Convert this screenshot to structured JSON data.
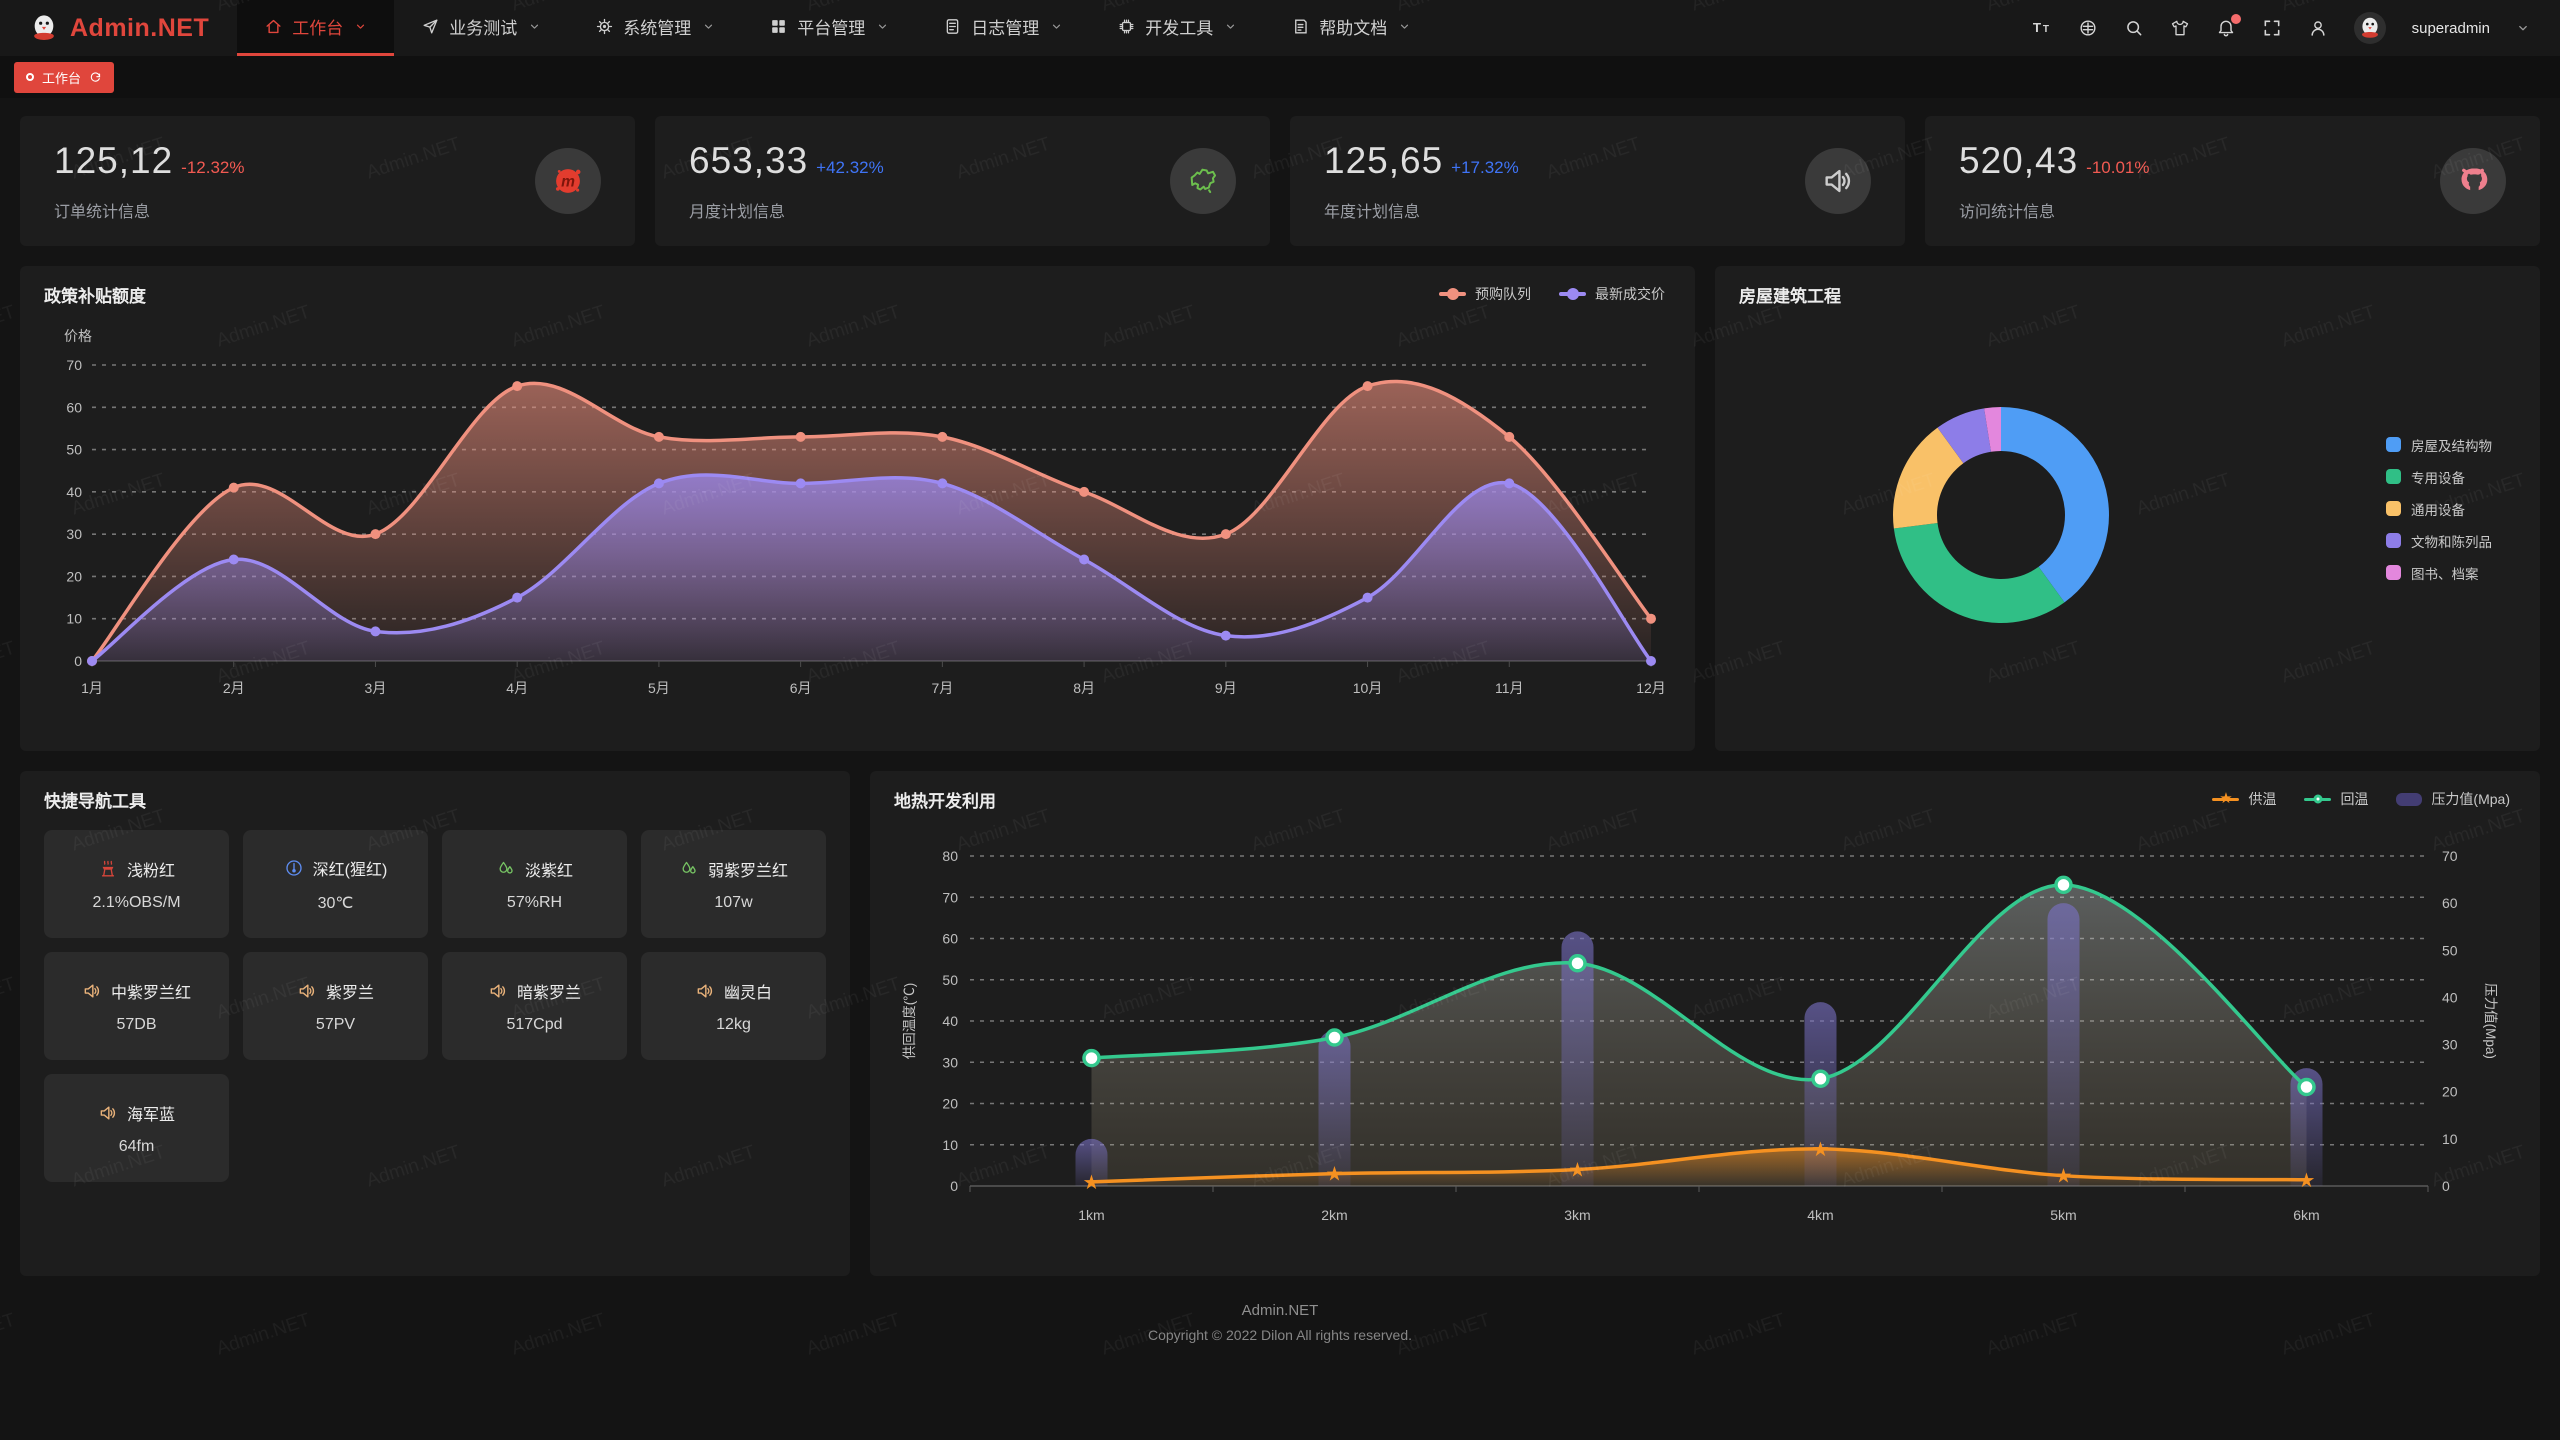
{
  "brand": {
    "logo_text": "Admin.NET",
    "accent": "#e0463c"
  },
  "navbar": {
    "items": [
      {
        "label": "工作台",
        "icon": "home-icon",
        "active": true
      },
      {
        "label": "业务测试",
        "icon": "send-icon"
      },
      {
        "label": "系统管理",
        "icon": "gear-icon"
      },
      {
        "label": "平台管理",
        "icon": "grid-icon"
      },
      {
        "label": "日志管理",
        "icon": "log-icon"
      },
      {
        "label": "开发工具",
        "icon": "chip-icon"
      },
      {
        "label": "帮助文档",
        "icon": "doc-icon"
      }
    ],
    "tools": [
      "font-size-icon",
      "language-icon",
      "search-icon",
      "theme-icon",
      "notification-icon",
      "fullscreen-icon",
      "profile-icon"
    ],
    "user": "superadmin"
  },
  "tabbar": {
    "active_tab": "工作台"
  },
  "stats": [
    {
      "value": "125,12",
      "delta": "-12.32%",
      "trend": "down",
      "label": "订单统计信息",
      "icon": "meetup-icon"
    },
    {
      "value": "653,33",
      "delta": "+42.32%",
      "trend": "up",
      "label": "月度计划信息",
      "icon": "china-map-icon"
    },
    {
      "value": "125,65",
      "delta": "+17.32%",
      "trend": "up",
      "label": "年度计划信息",
      "icon": "speaker-icon"
    },
    {
      "value": "520,43",
      "delta": "-10.01%",
      "trend": "down",
      "label": "访问统计信息",
      "icon": "octocat-icon"
    }
  ],
  "panels": {
    "subsidy_title": "政策补贴额度",
    "building_title": "房屋建筑工程",
    "quick_nav_title": "快捷导航工具",
    "geothermal_title": "地热开发利用"
  },
  "quick_nav": [
    {
      "name": "浅粉红",
      "value": "2.1%OBS/M",
      "icon": "heat-icon",
      "color": "#d6453a"
    },
    {
      "name": "深红(猩红)",
      "value": "30℃",
      "icon": "thermometer-icon",
      "color": "#5e8df2"
    },
    {
      "name": "淡紫红",
      "value": "57%RH",
      "icon": "drops-icon",
      "color": "#76c263"
    },
    {
      "name": "弱紫罗兰红",
      "value": "107w",
      "icon": "drops-icon",
      "color": "#76c263"
    },
    {
      "name": "中紫罗兰红",
      "value": "57DB",
      "icon": "speaker-icon",
      "color": "#e9b27a"
    },
    {
      "name": "紫罗兰",
      "value": "57PV",
      "icon": "speaker-icon",
      "color": "#e9b27a"
    },
    {
      "name": "暗紫罗兰",
      "value": "517Cpd",
      "icon": "speaker-icon",
      "color": "#e9b27a"
    },
    {
      "name": "幽灵白",
      "value": "12kg",
      "icon": "speaker-icon",
      "color": "#e9b27a"
    },
    {
      "name": "海军蓝",
      "value": "64fm",
      "icon": "speaker-icon",
      "color": "#e9b27a"
    }
  ],
  "footer": {
    "line1": "Admin.NET",
    "line2": "Copyright © 2022 Dilon All rights reserved."
  },
  "watermark_text": "Admin.NET",
  "chart_data": [
    {
      "type": "line",
      "title": "政策补贴额度",
      "ylabel": "价格",
      "ylim": [
        0,
        70
      ],
      "grid": true,
      "legend_position": "top-right",
      "categories": [
        "1月",
        "2月",
        "3月",
        "4月",
        "5月",
        "6月",
        "7月",
        "8月",
        "9月",
        "10月",
        "11月",
        "12月"
      ],
      "series": [
        {
          "name": "预购队列",
          "color": "#f0917f",
          "values": [
            0,
            41,
            30,
            65,
            53,
            53,
            53,
            40,
            30,
            65,
            53,
            10
          ]
        },
        {
          "name": "最新成交价",
          "color": "#9c8af2",
          "values": [
            0,
            24,
            7,
            15,
            42,
            42,
            42,
            24,
            6,
            15,
            42,
            0
          ]
        }
      ]
    },
    {
      "type": "pie",
      "title": "房屋建筑工程",
      "donut": true,
      "legend_position": "right",
      "labels": [
        "房屋及结构物",
        "专用设备",
        "通用设备",
        "文物和陈列品",
        "图书、档案"
      ],
      "values": [
        40,
        33,
        17,
        7.5,
        2.5
      ],
      "unit": "percent",
      "colors": [
        "#4f9df5",
        "#30bf86",
        "#f9c168",
        "#8d7de8",
        "#e387dd"
      ]
    },
    {
      "type": "line+bar",
      "title": "地热开发利用",
      "categories": [
        "1km",
        "2km",
        "3km",
        "4km",
        "5km",
        "6km"
      ],
      "ylabel_left": "供回温度(℃)",
      "ylim_left": [
        0,
        80
      ],
      "ylabel_right": "压力值(Mpa)",
      "ylim_right": [
        0,
        70
      ],
      "grid": true,
      "legend_position": "top-right",
      "series": [
        {
          "name": "供温",
          "type": "line",
          "axis": "left",
          "marker": "star",
          "color": "#f59121",
          "values": [
            1,
            3,
            4,
            9,
            2.5,
            1.5
          ]
        },
        {
          "name": "回温",
          "type": "line",
          "axis": "left",
          "marker": "circle",
          "color": "#34c98e",
          "values": [
            31,
            36,
            54,
            26,
            73,
            24
          ]
        },
        {
          "name": "压力值(Mpa)",
          "type": "bar",
          "axis": "right",
          "color": "#6f66b8",
          "legend_color": "#433d73",
          "values": [
            10,
            33,
            54,
            39,
            60,
            25
          ]
        }
      ]
    }
  ]
}
